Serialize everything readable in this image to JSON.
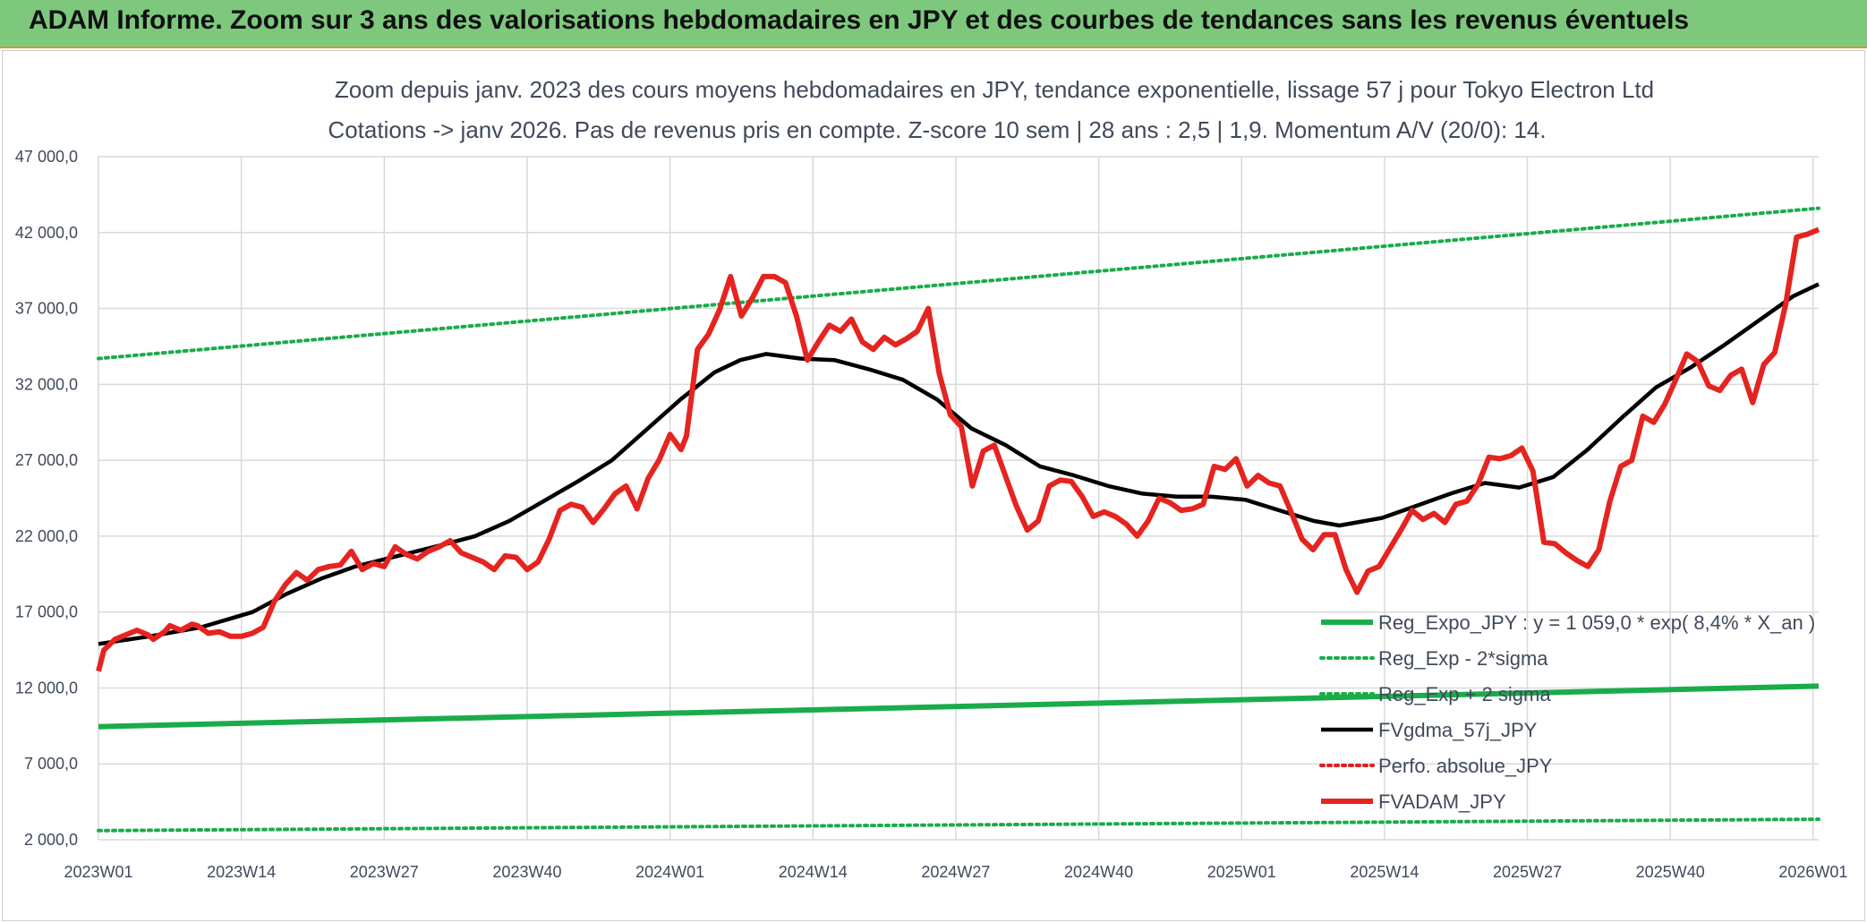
{
  "header": {
    "title": "ADAM Informe. Zoom sur 3 ans des valorisations hebdomadaires en JPY et des courbes de tendances sans les revenus éventuels"
  },
  "chart_data": {
    "type": "line",
    "title": "Zoom depuis janv. 2023 des cours moyens hebdomadaires en JPY, tendance exponentielle, lissage 57 j pour Tokyo Electron Ltd",
    "subtitle": "Cotations -> janv 2026. Pas de revenus pris en compte. Z-score 10 sem | 28 ans : 2,5 | 1,9. Momentum A/V (20/0): 14.",
    "xlabel": "",
    "ylabel": "",
    "ylim": [
      2000,
      47000
    ],
    "yticks": [
      "47 000,0",
      "42 000,0",
      "37 000,0",
      "32 000,0",
      "27 000,0",
      "22 000,0",
      "17 000,0",
      "12 000,0",
      "7 000,0",
      "2 000,0"
    ],
    "xtick_labels": [
      "2023W01",
      "2023W14",
      "2023W27",
      "2023W40",
      "2024W01",
      "2024W14",
      "2024W27",
      "2024W40",
      "2025W01",
      "2025W14",
      "2025W27",
      "2025W40",
      "2026W01"
    ],
    "grid": true,
    "legend_position": "bottom-right",
    "series": [
      {
        "name": "Reg_Expo_JPY : y = 1 059,0 * exp( 8,4% *  X_an )",
        "color": "#1aac4a",
        "style": "solid-thick",
        "points": [
          [
            0,
            9450
          ],
          [
            161,
            12120
          ]
        ]
      },
      {
        "name": "Reg_Exp - 2*sigma",
        "color": "#1aac4a",
        "style": "dotted",
        "points": [
          [
            0,
            2600
          ],
          [
            161,
            3350
          ]
        ]
      },
      {
        "name": "Reg_Exp + 2 sigma",
        "color": "#1aac4a",
        "style": "dotted",
        "points": [
          [
            0,
            33700
          ],
          [
            161,
            43600
          ]
        ]
      },
      {
        "name": "FVgdma_57j_JPY",
        "color": "#000000",
        "style": "solid",
        "points": [
          [
            0,
            14900
          ],
          [
            6,
            15400
          ],
          [
            12,
            16000
          ],
          [
            18,
            17000
          ],
          [
            22,
            18200
          ],
          [
            26,
            19200
          ],
          [
            30,
            20000
          ],
          [
            35,
            20700
          ],
          [
            40,
            21400
          ],
          [
            44,
            22000
          ],
          [
            48,
            23000
          ],
          [
            52,
            24300
          ],
          [
            56,
            25600
          ],
          [
            60,
            27000
          ],
          [
            64,
            29000
          ],
          [
            68,
            31000
          ],
          [
            72,
            32800
          ],
          [
            75,
            33600
          ],
          [
            78,
            34000
          ],
          [
            82,
            33700
          ],
          [
            86,
            33600
          ],
          [
            90,
            33000
          ],
          [
            94,
            32300
          ],
          [
            98,
            31000
          ],
          [
            102,
            29100
          ],
          [
            106,
            28000
          ],
          [
            110,
            26600
          ],
          [
            114,
            26000
          ],
          [
            118,
            25300
          ],
          [
            122,
            24800
          ],
          [
            126,
            24600
          ],
          [
            130,
            24600
          ],
          [
            134,
            24400
          ],
          [
            138,
            23700
          ],
          [
            142,
            23000
          ],
          [
            145,
            22700
          ],
          [
            150,
            23200
          ],
          [
            154,
            24000
          ],
          [
            158,
            24800
          ],
          [
            162,
            25500
          ],
          [
            166,
            25200
          ],
          [
            170,
            25900
          ],
          [
            174,
            27700
          ],
          [
            178,
            29800
          ],
          [
            182,
            31800
          ],
          [
            186,
            33100
          ],
          [
            190,
            34600
          ],
          [
            194,
            36200
          ],
          [
            198,
            37800
          ],
          [
            201,
            38600
          ]
        ]
      },
      {
        "name": "Perfo. absolue_JPY",
        "color": "#e02020",
        "style": "dotted",
        "points": []
      },
      {
        "name": "FVADAM_JPY",
        "color": "#e52420",
        "style": "solid-thick",
        "points": [
          [
            0,
            13100
          ],
          [
            1,
            14500
          ],
          [
            3,
            15200
          ],
          [
            5,
            15500
          ],
          [
            7,
            15800
          ],
          [
            9,
            15500
          ],
          [
            10,
            15200
          ],
          [
            12,
            15700
          ],
          [
            13,
            16100
          ],
          [
            15,
            15800
          ],
          [
            17,
            16200
          ],
          [
            18,
            16100
          ],
          [
            20,
            15600
          ],
          [
            22,
            15700
          ],
          [
            24,
            15400
          ],
          [
            26,
            15400
          ],
          [
            28,
            15600
          ],
          [
            30,
            16000
          ],
          [
            32,
            17700
          ],
          [
            34,
            18800
          ],
          [
            36,
            19600
          ],
          [
            38,
            19100
          ],
          [
            40,
            19800
          ],
          [
            42,
            20000
          ],
          [
            44,
            20100
          ],
          [
            46,
            21000
          ],
          [
            48,
            19800
          ],
          [
            50,
            20200
          ],
          [
            52,
            20000
          ],
          [
            54,
            21300
          ],
          [
            56,
            20800
          ],
          [
            58,
            20500
          ],
          [
            60,
            21000
          ],
          [
            62,
            21300
          ],
          [
            64,
            21700
          ],
          [
            66,
            20900
          ],
          [
            68,
            20600
          ],
          [
            70,
            20300
          ],
          [
            72,
            19800
          ],
          [
            74,
            20700
          ],
          [
            76,
            20600
          ],
          [
            78,
            19800
          ],
          [
            80,
            20300
          ],
          [
            82,
            21800
          ],
          [
            84,
            23700
          ],
          [
            86,
            24100
          ],
          [
            88,
            23900
          ],
          [
            90,
            22900
          ],
          [
            92,
            23800
          ],
          [
            94,
            24800
          ],
          [
            96,
            25300
          ],
          [
            98,
            23800
          ],
          [
            100,
            25800
          ],
          [
            102,
            27000
          ],
          [
            104,
            28700
          ],
          [
            106,
            27700
          ],
          [
            107,
            28600
          ],
          [
            109,
            34300
          ],
          [
            111,
            35300
          ],
          [
            113,
            36900
          ],
          [
            115,
            39100
          ],
          [
            117,
            36500
          ],
          [
            119,
            37700
          ],
          [
            121,
            39100
          ],
          [
            123,
            39100
          ],
          [
            125,
            38700
          ],
          [
            127,
            36500
          ],
          [
            129,
            33600
          ],
          [
            131,
            34800
          ],
          [
            133,
            35900
          ],
          [
            135,
            35500
          ],
          [
            137,
            36300
          ],
          [
            139,
            34800
          ],
          [
            141,
            34300
          ],
          [
            143,
            35100
          ],
          [
            145,
            34600
          ],
          [
            147,
            35000
          ],
          [
            149,
            35500
          ],
          [
            151,
            37000
          ],
          [
            153,
            32700
          ],
          [
            155,
            30000
          ],
          [
            157,
            29200
          ],
          [
            159,
            25300
          ],
          [
            161,
            27600
          ],
          [
            163,
            28000
          ],
          [
            165,
            26000
          ],
          [
            167,
            24000
          ],
          [
            169,
            22400
          ],
          [
            171,
            23000
          ],
          [
            173,
            25300
          ],
          [
            175,
            25700
          ],
          [
            177,
            25600
          ],
          [
            179,
            24600
          ],
          [
            181,
            23300
          ],
          [
            183,
            23600
          ],
          [
            185,
            23300
          ],
          [
            187,
            22800
          ],
          [
            189,
            22000
          ],
          [
            191,
            23000
          ],
          [
            193,
            24500
          ],
          [
            195,
            24200
          ],
          [
            197,
            23700
          ],
          [
            199,
            23800
          ],
          [
            201,
            24100
          ],
          [
            203,
            26600
          ],
          [
            205,
            26400
          ],
          [
            207,
            27100
          ],
          [
            209,
            25300
          ],
          [
            211,
            26000
          ],
          [
            213,
            25500
          ],
          [
            215,
            25300
          ],
          [
            217,
            23600
          ],
          [
            219,
            21800
          ],
          [
            221,
            21100
          ],
          [
            223,
            22100
          ],
          [
            225,
            22100
          ],
          [
            227,
            19800
          ],
          [
            229,
            18300
          ],
          [
            231,
            19700
          ],
          [
            233,
            20000
          ],
          [
            235,
            21200
          ],
          [
            237,
            22400
          ],
          [
            239,
            23700
          ],
          [
            241,
            23100
          ],
          [
            243,
            23500
          ],
          [
            245,
            22900
          ],
          [
            247,
            24100
          ],
          [
            249,
            24300
          ],
          [
            251,
            25400
          ],
          [
            253,
            27200
          ],
          [
            255,
            27100
          ],
          [
            257,
            27300
          ],
          [
            259,
            27800
          ],
          [
            261,
            26300
          ],
          [
            263,
            21600
          ],
          [
            265,
            21500
          ],
          [
            267,
            20900
          ],
          [
            269,
            20400
          ],
          [
            271,
            20000
          ],
          [
            273,
            21100
          ],
          [
            275,
            24300
          ],
          [
            277,
            26600
          ],
          [
            279,
            27000
          ],
          [
            281,
            29900
          ],
          [
            283,
            29500
          ],
          [
            285,
            30700
          ],
          [
            287,
            32300
          ],
          [
            289,
            34000
          ],
          [
            291,
            33500
          ],
          [
            293,
            31900
          ],
          [
            295,
            31600
          ],
          [
            297,
            32600
          ],
          [
            299,
            33000
          ],
          [
            301,
            30800
          ],
          [
            303,
            33300
          ],
          [
            305,
            34100
          ],
          [
            307,
            37300
          ],
          [
            309,
            41700
          ],
          [
            311,
            41900
          ],
          [
            313,
            42200
          ]
        ]
      }
    ]
  }
}
